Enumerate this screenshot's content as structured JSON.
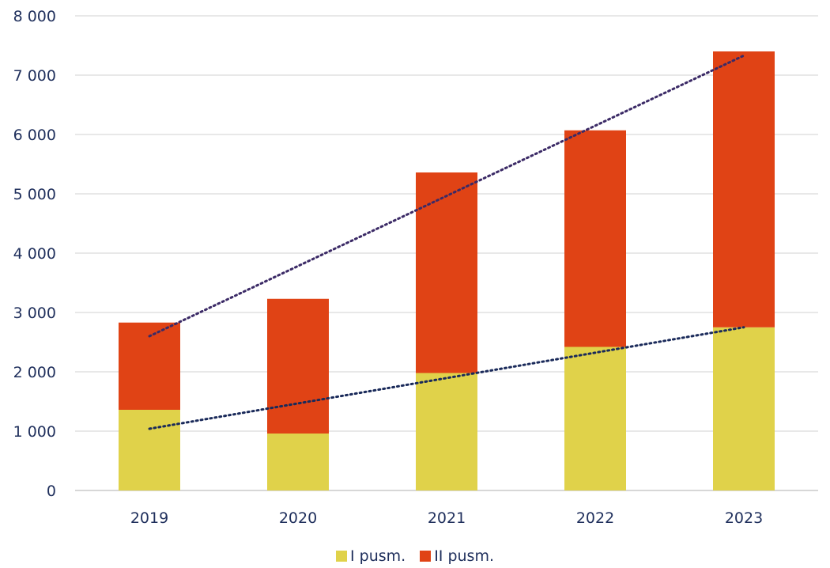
{
  "chart_data": {
    "type": "bar",
    "stacked": true,
    "categories": [
      "2019",
      "2020",
      "2021",
      "2022",
      "2023"
    ],
    "series": [
      {
        "name": "I pusm.",
        "values": [
          1360,
          960,
          1980,
          2420,
          2750
        ],
        "color": "#e0d24a"
      },
      {
        "name": "II pusm.",
        "values": [
          1470,
          2270,
          3380,
          3650,
          4650
        ],
        "color": "#e04315"
      }
    ],
    "trendlines": [
      {
        "series": "I pusm.",
        "style": "dotted",
        "color": "#1a2a5a",
        "from": 1040,
        "to": 2750
      },
      {
        "series": "Total",
        "style": "dotted",
        "color": "#3b2a66",
        "from": 2600,
        "to": 7330
      }
    ],
    "ylim": [
      0,
      8000
    ],
    "yticks": [
      "0",
      "1 000",
      "2 000",
      "3 000",
      "4 000",
      "5 000",
      "6 000",
      "7 000",
      "8 000"
    ],
    "grid": true,
    "legend_position": "bottom",
    "title": "",
    "xlabel": "",
    "ylabel": ""
  }
}
